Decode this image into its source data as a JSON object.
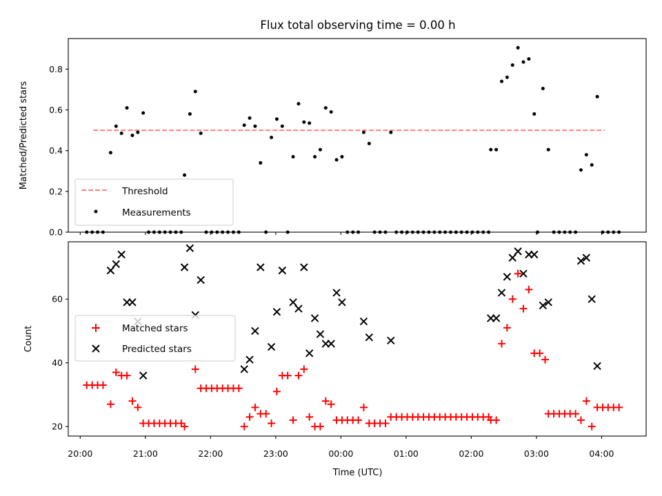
{
  "chart_data": [
    {
      "type": "scatter",
      "title": "Flux total observing time = 0.00 h",
      "xlabel": "",
      "ylabel": "Matched/Predicted stars",
      "xlim": [
        "19:49",
        "04:41"
      ],
      "ylim": [
        0,
        0.95
      ],
      "yticks": [
        "0.0",
        "0.2",
        "0.4",
        "0.6",
        "0.8"
      ],
      "xticks_labels_shown": false,
      "grid": false,
      "legend_position": "lower-left",
      "threshold": {
        "name": "Threshold",
        "y": 0.5,
        "x_range": [
          "20:12",
          "04:03"
        ],
        "color": "#ff7f7f",
        "style": "dashed"
      },
      "series": [
        {
          "name": "Measurements",
          "color": "#000000",
          "marker": "dot",
          "points": [
            [
              "20:06",
              0.0
            ],
            [
              "20:11",
              0.0
            ],
            [
              "20:16",
              0.0
            ],
            [
              "20:21",
              0.0
            ],
            [
              "20:28",
              0.39
            ],
            [
              "20:33",
              0.52
            ],
            [
              "20:38",
              0.485
            ],
            [
              "20:43",
              0.61
            ],
            [
              "20:48",
              0.475
            ],
            [
              "20:53",
              0.49
            ],
            [
              "20:58",
              0.585
            ],
            [
              "21:03",
              0.0
            ],
            [
              "21:08",
              0.0
            ],
            [
              "21:13",
              0.0
            ],
            [
              "21:18",
              0.0
            ],
            [
              "21:23",
              0.0
            ],
            [
              "21:28",
              0.0
            ],
            [
              "21:33",
              0.0
            ],
            [
              "21:36",
              0.28
            ],
            [
              "21:41",
              0.58
            ],
            [
              "21:46",
              0.69
            ],
            [
              "21:51",
              0.485
            ],
            [
              "21:56",
              0.0
            ],
            [
              "22:01",
              0.0
            ],
            [
              "22:06",
              0.0
            ],
            [
              "22:11",
              0.0
            ],
            [
              "22:16",
              0.0
            ],
            [
              "22:21",
              0.0
            ],
            [
              "22:26",
              0.0
            ],
            [
              "22:31",
              0.525
            ],
            [
              "22:36",
              0.56
            ],
            [
              "22:41",
              0.52
            ],
            [
              "22:46",
              0.34
            ],
            [
              "22:51",
              0.0
            ],
            [
              "22:56",
              0.465
            ],
            [
              "23:01",
              0.555
            ],
            [
              "23:06",
              0.52
            ],
            [
              "23:11",
              0.0
            ],
            [
              "23:16",
              0.37
            ],
            [
              "23:21",
              0.63
            ],
            [
              "23:26",
              0.54
            ],
            [
              "23:31",
              0.535
            ],
            [
              "23:36",
              0.37
            ],
            [
              "23:41",
              0.405
            ],
            [
              "23:46",
              0.61
            ],
            [
              "23:51",
              0.59
            ],
            [
              "23:56",
              0.355
            ],
            [
              "00:01",
              0.37
            ],
            [
              "00:06",
              0.0
            ],
            [
              "00:11",
              0.0
            ],
            [
              "00:16",
              0.0
            ],
            [
              "00:21",
              0.49
            ],
            [
              "00:26",
              0.435
            ],
            [
              "00:31",
              0.0
            ],
            [
              "00:36",
              0.0
            ],
            [
              "00:41",
              0.0
            ],
            [
              "00:46",
              0.49
            ],
            [
              "00:51",
              0.0
            ],
            [
              "00:56",
              0.0
            ],
            [
              "01:01",
              0.0
            ],
            [
              "01:06",
              0.0
            ],
            [
              "01:11",
              0.0
            ],
            [
              "01:16",
              0.0
            ],
            [
              "01:21",
              0.0
            ],
            [
              "01:26",
              0.0
            ],
            [
              "01:31",
              0.0
            ],
            [
              "01:36",
              0.0
            ],
            [
              "01:41",
              0.0
            ],
            [
              "01:46",
              0.0
            ],
            [
              "01:51",
              0.0
            ],
            [
              "01:56",
              0.0
            ],
            [
              "02:01",
              0.0
            ],
            [
              "02:06",
              0.0
            ],
            [
              "02:11",
              0.0
            ],
            [
              "02:16",
              0.0
            ],
            [
              "02:18",
              0.405
            ],
            [
              "02:23",
              0.405
            ],
            [
              "02:28",
              0.74
            ],
            [
              "02:33",
              0.76
            ],
            [
              "02:38",
              0.82
            ],
            [
              "02:43",
              0.905
            ],
            [
              "02:48",
              0.835
            ],
            [
              "02:53",
              0.85
            ],
            [
              "02:58",
              0.58
            ],
            [
              "03:01",
              0.0
            ],
            [
              "03:06",
              0.705
            ],
            [
              "03:11",
              0.405
            ],
            [
              "03:16",
              0.0
            ],
            [
              "03:21",
              0.0
            ],
            [
              "03:26",
              0.0
            ],
            [
              "03:31",
              0.0
            ],
            [
              "03:36",
              0.0
            ],
            [
              "03:41",
              0.305
            ],
            [
              "03:46",
              0.38
            ],
            [
              "03:51",
              0.33
            ],
            [
              "03:56",
              0.665
            ],
            [
              "04:01",
              0.0
            ],
            [
              "04:06",
              0.0
            ],
            [
              "04:11",
              0.0
            ],
            [
              "04:16",
              0.0
            ]
          ]
        }
      ]
    },
    {
      "type": "scatter",
      "title": "",
      "xlabel": "Time (UTC)",
      "ylabel": "Count",
      "xlim": [
        "19:49",
        "04:41"
      ],
      "ylim": [
        17,
        78
      ],
      "yticks": [
        "20",
        "40",
        "60"
      ],
      "xticks": [
        "20:00",
        "21:00",
        "22:00",
        "23:00",
        "00:00",
        "01:00",
        "02:00",
        "03:00",
        "04:00"
      ],
      "grid": false,
      "legend_position": "center-left",
      "series": [
        {
          "name": "Matched stars",
          "color": "#ff0000",
          "marker": "plus",
          "points": [
            [
              "20:06",
              33
            ],
            [
              "20:11",
              33
            ],
            [
              "20:16",
              33
            ],
            [
              "20:21",
              33
            ],
            [
              "20:28",
              27
            ],
            [
              "20:33",
              37
            ],
            [
              "20:38",
              36
            ],
            [
              "20:43",
              36
            ],
            [
              "20:48",
              28
            ],
            [
              "20:53",
              26
            ],
            [
              "20:58",
              21
            ],
            [
              "21:03",
              21
            ],
            [
              "21:08",
              21
            ],
            [
              "21:13",
              21
            ],
            [
              "21:18",
              21
            ],
            [
              "21:23",
              21
            ],
            [
              "21:28",
              21
            ],
            [
              "21:33",
              21
            ],
            [
              "21:36",
              20
            ],
            [
              "21:46",
              38
            ],
            [
              "21:51",
              32
            ],
            [
              "21:56",
              32
            ],
            [
              "22:01",
              32
            ],
            [
              "22:06",
              32
            ],
            [
              "22:11",
              32
            ],
            [
              "22:16",
              32
            ],
            [
              "22:21",
              32
            ],
            [
              "22:26",
              32
            ],
            [
              "22:31",
              20
            ],
            [
              "22:36",
              23
            ],
            [
              "22:41",
              26
            ],
            [
              "22:46",
              24
            ],
            [
              "22:51",
              24
            ],
            [
              "22:56",
              21
            ],
            [
              "23:01",
              31
            ],
            [
              "23:06",
              36
            ],
            [
              "23:11",
              36
            ],
            [
              "23:16",
              22
            ],
            [
              "23:21",
              36
            ],
            [
              "23:26",
              38
            ],
            [
              "23:31",
              23
            ],
            [
              "23:36",
              20
            ],
            [
              "23:41",
              20
            ],
            [
              "23:46",
              28
            ],
            [
              "23:51",
              27
            ],
            [
              "23:56",
              22
            ],
            [
              "00:01",
              22
            ],
            [
              "00:06",
              22
            ],
            [
              "00:11",
              22
            ],
            [
              "00:16",
              22
            ],
            [
              "00:21",
              26
            ],
            [
              "00:26",
              21
            ],
            [
              "00:31",
              21
            ],
            [
              "00:36",
              21
            ],
            [
              "00:41",
              21
            ],
            [
              "00:46",
              23
            ],
            [
              "00:51",
              23
            ],
            [
              "00:56",
              23
            ],
            [
              "01:01",
              23
            ],
            [
              "01:06",
              23
            ],
            [
              "01:11",
              23
            ],
            [
              "01:16",
              23
            ],
            [
              "01:21",
              23
            ],
            [
              "01:26",
              23
            ],
            [
              "01:31",
              23
            ],
            [
              "01:36",
              23
            ],
            [
              "01:41",
              23
            ],
            [
              "01:46",
              23
            ],
            [
              "01:51",
              23
            ],
            [
              "01:56",
              23
            ],
            [
              "02:01",
              23
            ],
            [
              "02:06",
              23
            ],
            [
              "02:11",
              23
            ],
            [
              "02:16",
              23
            ],
            [
              "02:18",
              22
            ],
            [
              "02:23",
              22
            ],
            [
              "02:28",
              46
            ],
            [
              "02:33",
              51
            ],
            [
              "02:38",
              60
            ],
            [
              "02:43",
              68
            ],
            [
              "02:48",
              57
            ],
            [
              "02:53",
              63
            ],
            [
              "02:58",
              43
            ],
            [
              "03:03",
              43
            ],
            [
              "03:08",
              41
            ],
            [
              "03:11",
              24
            ],
            [
              "03:16",
              24
            ],
            [
              "03:21",
              24
            ],
            [
              "03:26",
              24
            ],
            [
              "03:31",
              24
            ],
            [
              "03:36",
              24
            ],
            [
              "03:41",
              22
            ],
            [
              "03:46",
              28
            ],
            [
              "03:51",
              20
            ],
            [
              "03:56",
              26
            ],
            [
              "04:01",
              26
            ],
            [
              "04:06",
              26
            ],
            [
              "04:11",
              26
            ],
            [
              "04:16",
              26
            ]
          ]
        },
        {
          "name": "Predicted stars",
          "color": "#000000",
          "marker": "x",
          "points": [
            [
              "20:28",
              69
            ],
            [
              "20:33",
              71
            ],
            [
              "20:38",
              74
            ],
            [
              "20:43",
              59
            ],
            [
              "20:48",
              59
            ],
            [
              "20:53",
              53
            ],
            [
              "20:58",
              36
            ],
            [
              "21:36",
              70
            ],
            [
              "21:41",
              76
            ],
            [
              "21:46",
              55
            ],
            [
              "21:51",
              66
            ],
            [
              "22:31",
              38
            ],
            [
              "22:36",
              41
            ],
            [
              "22:41",
              50
            ],
            [
              "22:46",
              70
            ],
            [
              "22:56",
              45
            ],
            [
              "23:01",
              56
            ],
            [
              "23:06",
              69
            ],
            [
              "23:16",
              59
            ],
            [
              "23:21",
              57
            ],
            [
              "23:26",
              70
            ],
            [
              "23:31",
              43
            ],
            [
              "23:36",
              54
            ],
            [
              "23:41",
              49
            ],
            [
              "23:46",
              46
            ],
            [
              "23:51",
              46
            ],
            [
              "23:56",
              62
            ],
            [
              "00:01",
              59
            ],
            [
              "00:21",
              53
            ],
            [
              "00:26",
              48
            ],
            [
              "00:46",
              47
            ],
            [
              "02:18",
              54
            ],
            [
              "02:23",
              54
            ],
            [
              "02:28",
              62
            ],
            [
              "02:33",
              67
            ],
            [
              "02:38",
              73
            ],
            [
              "02:43",
              75
            ],
            [
              "02:48",
              68
            ],
            [
              "02:53",
              74
            ],
            [
              "02:58",
              74
            ],
            [
              "03:06",
              58
            ],
            [
              "03:11",
              59
            ],
            [
              "03:41",
              72
            ],
            [
              "03:46",
              73
            ],
            [
              "03:51",
              60
            ],
            [
              "03:56",
              39
            ]
          ]
        }
      ]
    }
  ]
}
